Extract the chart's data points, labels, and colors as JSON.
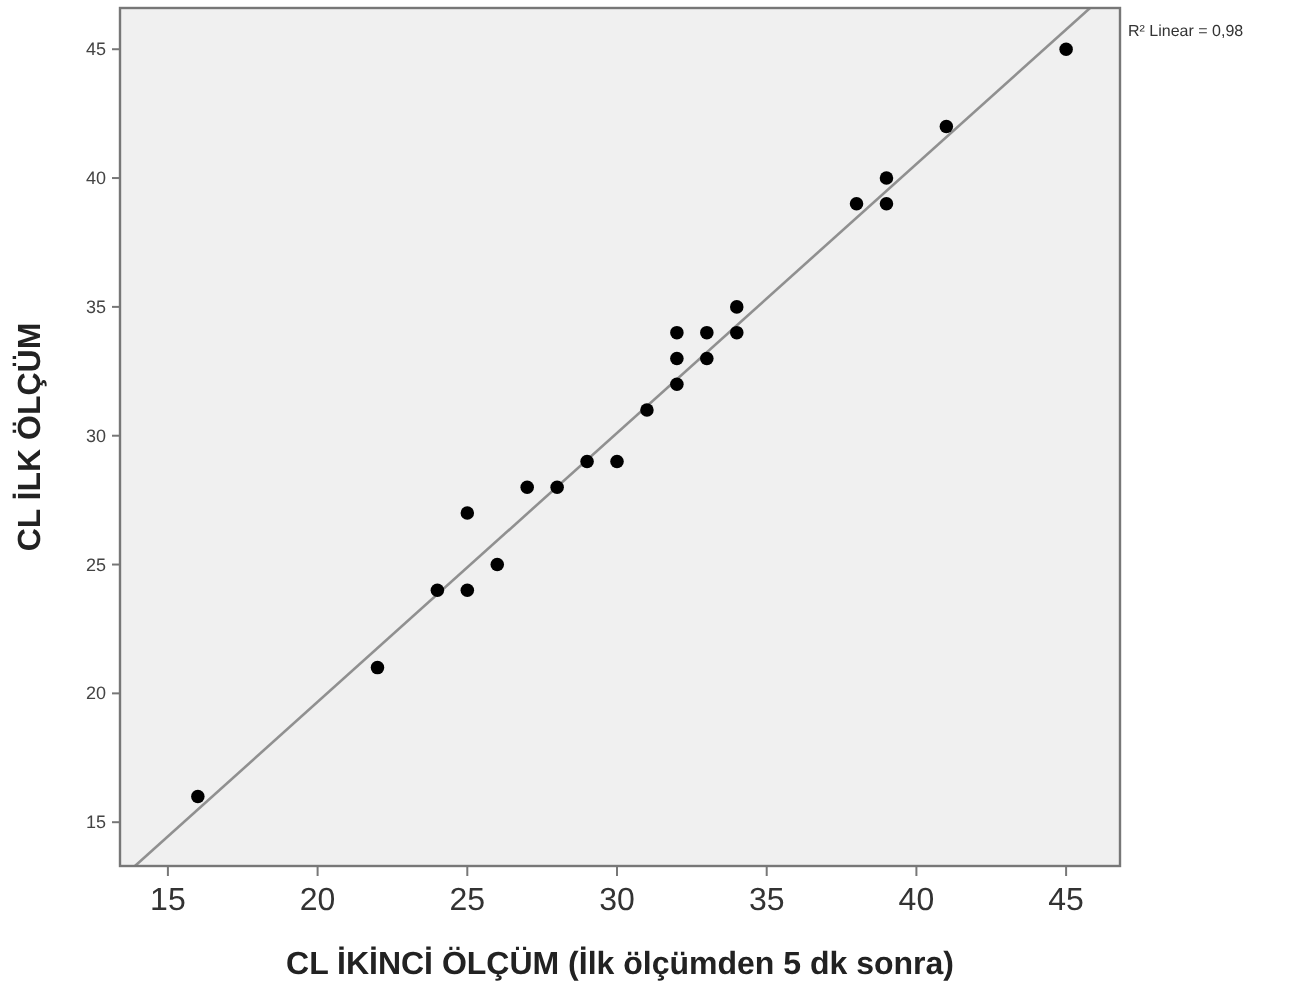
{
  "chart_data": {
    "type": "scatter",
    "xlabel": "CL İKİNCİ ÖLÇÜM (İlk ölçümden 5 dk sonra)",
    "ylabel": "CL İLK ÖLÇÜM",
    "xlim": [
      13.4,
      46.8
    ],
    "ylim": [
      13.3,
      46.6
    ],
    "xticks": [
      15,
      20,
      25,
      30,
      35,
      40,
      45
    ],
    "yticks": [
      15,
      20,
      25,
      30,
      35,
      40,
      45
    ],
    "grid": false,
    "marker": "circle",
    "annotations": [
      "R² Linear = 0,98"
    ],
    "series": [
      {
        "color": "#000000",
        "x": [
          16,
          22,
          24,
          25,
          25,
          26,
          27,
          28,
          29,
          30,
          31,
          32,
          32,
          32,
          33,
          33,
          34,
          34,
          38,
          39,
          39,
          41,
          45
        ],
        "values": [
          16,
          21,
          24,
          24,
          27,
          25,
          28,
          28,
          29,
          29,
          31,
          32,
          33,
          34,
          33,
          34,
          34,
          35,
          39,
          39,
          40,
          42,
          45
        ]
      },
      {
        "type": "line",
        "color": "#909090",
        "marker": "none",
        "x": [
          13.9,
          45.8
        ],
        "values": [
          13.3,
          46.6
        ]
      }
    ]
  }
}
